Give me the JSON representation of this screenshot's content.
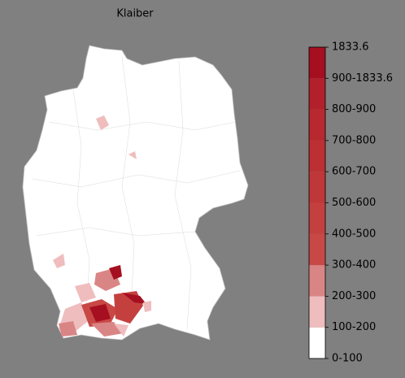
{
  "title": "Klaiber",
  "colorbar": {
    "labels": [
      "0-100",
      "100-200",
      "200-300",
      "300-400",
      "400-500",
      "500-600",
      "600-700",
      "700-800",
      "800-900",
      "900-1833.6",
      "1833.6"
    ],
    "colors": [
      "#ffffff",
      "#efbdbd",
      "#da8585",
      "#c84846",
      "#c4403f",
      "#c0373a",
      "#bc3034",
      "#b8282f",
      "#b2202b",
      "#a50f20"
    ]
  }
}
